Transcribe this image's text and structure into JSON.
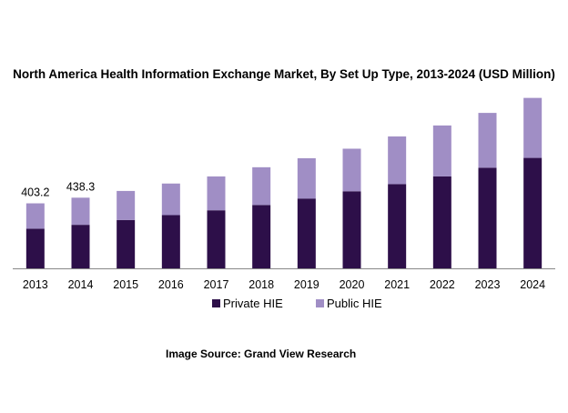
{
  "chart_data": {
    "type": "bar",
    "stacked": true,
    "title": "North America Health Information Exchange Market, By Set Up Type, 2013-2024 (USD Million)",
    "xlabel": "",
    "ylabel": "",
    "categories": [
      "2013",
      "2014",
      "2015",
      "2016",
      "2017",
      "2018",
      "2019",
      "2020",
      "2021",
      "2022",
      "2023",
      "2024"
    ],
    "series": [
      {
        "name": "Private HIE",
        "color": "#2d0f49",
        "values": [
          246,
          270,
          300,
          330,
          360,
          393,
          433,
          478,
          522,
          570,
          624,
          685
        ]
      },
      {
        "name": "Public HIE",
        "color": "#a08ec5",
        "values": [
          157.2,
          168.3,
          180,
          196,
          210,
          234,
          250,
          264,
          296,
          316,
          340,
          372
        ]
      }
    ],
    "data_labels": [
      {
        "category": "2013",
        "text": "403.2"
      },
      {
        "category": "2014",
        "text": "438.3"
      }
    ],
    "ylim": [
      0,
      1100
    ],
    "grid": false,
    "legend": "bottom"
  },
  "source": "Image Source: Grand View Research"
}
